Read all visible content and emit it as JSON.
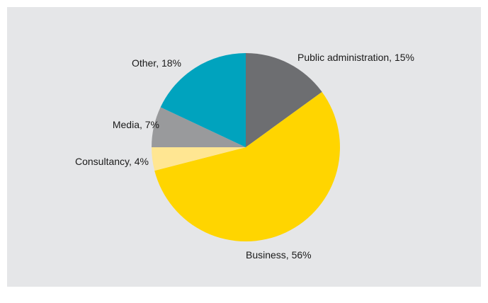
{
  "chart_data": {
    "type": "pie",
    "title": "",
    "slices": [
      {
        "name": "Public administration",
        "value": 15,
        "color": "#6d6e71",
        "label": "Public administration, 15%"
      },
      {
        "name": "Business",
        "value": 56,
        "color": "#ffd500",
        "label": "Business, 56%"
      },
      {
        "name": "Consultancy",
        "value": 4,
        "color": "#ffe692",
        "label": "Consultancy, 4%"
      },
      {
        "name": "Media",
        "value": 7,
        "color": "#999a9c",
        "label": "Media, 7%"
      },
      {
        "name": "Other",
        "value": 18,
        "color": "#00a3be",
        "label": "Other, 18%"
      }
    ],
    "start_angle": "12 o'clock",
    "direction": "clockwise",
    "legend": "none"
  }
}
